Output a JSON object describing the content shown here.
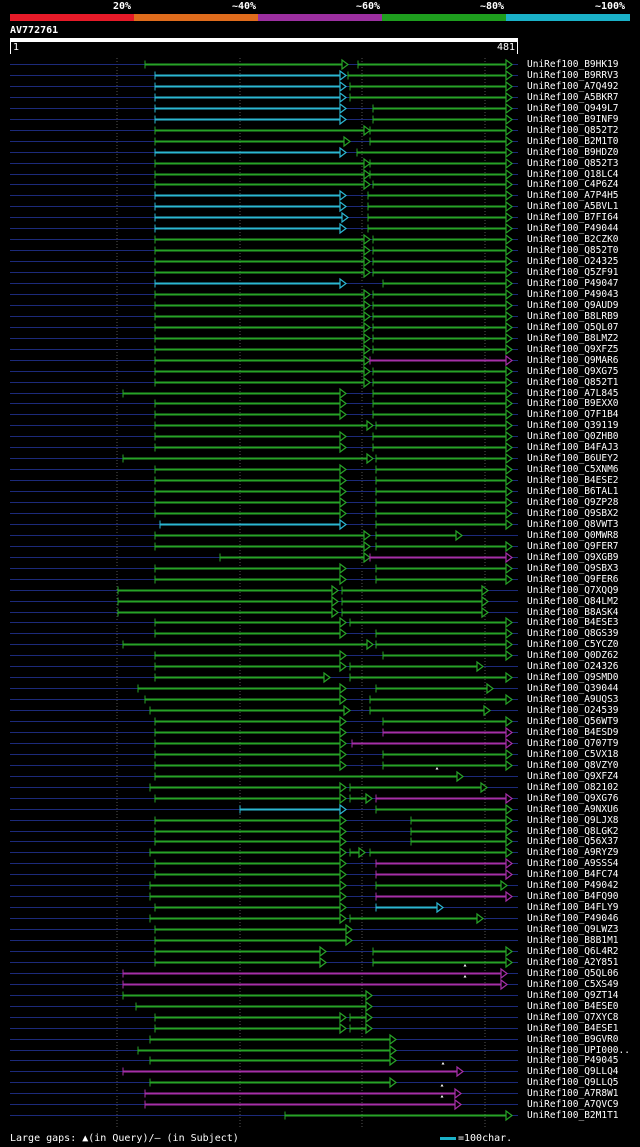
{
  "legend": {
    "ticks": [
      "20%",
      "~40%",
      "~60%",
      "~80%",
      "~100%"
    ],
    "colors": [
      "#e61a28",
      "#e06c1c",
      "#9c2fa0",
      "#1e9e1e",
      "#1ab1c8"
    ]
  },
  "query": {
    "name": "AV772761",
    "start": "1",
    "end": "481"
  },
  "footer": {
    "gaps_text": "Large gaps: ▲(in Query)/– (in Subject)",
    "scale_text": "=100char."
  },
  "hits": [
    {
      "name": "UniRef100_B9HK19",
      "segs": [
        [
          145,
          348,
          "g"
        ],
        [
          358,
          512,
          "g"
        ]
      ]
    },
    {
      "name": "UniRef100_B9RRV3",
      "segs": [
        [
          155,
          346,
          "c"
        ],
        [
          348,
          512,
          "g"
        ]
      ]
    },
    {
      "name": "UniRef100_A7Q492",
      "segs": [
        [
          155,
          346,
          "c"
        ],
        [
          350,
          512,
          "g"
        ]
      ]
    },
    {
      "name": "UniRef100_A5BKR7",
      "segs": [
        [
          155,
          346,
          "c"
        ],
        [
          350,
          512,
          "g"
        ]
      ]
    },
    {
      "name": "UniRef100_Q949L7",
      "segs": [
        [
          155,
          346,
          "c"
        ],
        [
          373,
          512,
          "g"
        ]
      ]
    },
    {
      "name": "UniRef100_B9INF9",
      "segs": [
        [
          155,
          346,
          "c"
        ],
        [
          373,
          512,
          "g"
        ]
      ]
    },
    {
      "name": "UniRef100_Q852T2",
      "segs": [
        [
          155,
          370,
          "g"
        ],
        [
          370,
          512,
          "g"
        ]
      ]
    },
    {
      "name": "UniRef100_B2M1T0",
      "segs": [
        [
          155,
          350,
          "g"
        ],
        [
          370,
          512,
          "g"
        ]
      ]
    },
    {
      "name": "UniRef100_B9HDZ0",
      "segs": [
        [
          155,
          346,
          "c"
        ],
        [
          357,
          512,
          "g"
        ]
      ]
    },
    {
      "name": "UniRef100_Q852T3",
      "segs": [
        [
          155,
          370,
          "g"
        ],
        [
          370,
          512,
          "g"
        ]
      ]
    },
    {
      "name": "UniRef100_Q18LC4",
      "segs": [
        [
          155,
          370,
          "g"
        ],
        [
          370,
          512,
          "g"
        ]
      ]
    },
    {
      "name": "UniRef100_C4P6Z4",
      "segs": [
        [
          155,
          370,
          "g"
        ],
        [
          373,
          512,
          "g"
        ]
      ]
    },
    {
      "name": "UniRef100_A7P4H5",
      "segs": [
        [
          155,
          346,
          "c"
        ],
        [
          368,
          512,
          "g"
        ]
      ]
    },
    {
      "name": "UniRef100_A5BVL1",
      "segs": [
        [
          155,
          346,
          "c"
        ],
        [
          368,
          512,
          "g"
        ]
      ]
    },
    {
      "name": "UniRef100_B7FI64",
      "segs": [
        [
          155,
          348,
          "c"
        ],
        [
          368,
          512,
          "g"
        ]
      ]
    },
    {
      "name": "UniRef100_P49044",
      "segs": [
        [
          155,
          346,
          "c"
        ],
        [
          368,
          512,
          "g"
        ]
      ]
    },
    {
      "name": "UniRef100_B2CZK0",
      "segs": [
        [
          155,
          370,
          "g"
        ],
        [
          373,
          512,
          "g"
        ]
      ]
    },
    {
      "name": "UniRef100_Q852T0",
      "segs": [
        [
          155,
          370,
          "g"
        ],
        [
          373,
          512,
          "g"
        ]
      ]
    },
    {
      "name": "UniRef100_O24325",
      "segs": [
        [
          155,
          370,
          "g"
        ],
        [
          373,
          512,
          "g"
        ]
      ]
    },
    {
      "name": "UniRef100_Q5ZF91",
      "segs": [
        [
          155,
          370,
          "g"
        ],
        [
          373,
          512,
          "g"
        ]
      ]
    },
    {
      "name": "UniRef100_P49047",
      "segs": [
        [
          155,
          346,
          "c"
        ],
        [
          383,
          512,
          "g"
        ]
      ]
    },
    {
      "name": "UniRef100_P49043",
      "segs": [
        [
          155,
          370,
          "g"
        ],
        [
          373,
          512,
          "g"
        ]
      ]
    },
    {
      "name": "UniRef100_Q9AUD9",
      "segs": [
        [
          155,
          370,
          "g"
        ],
        [
          373,
          512,
          "g"
        ]
      ]
    },
    {
      "name": "UniRef100_B8LRB9",
      "segs": [
        [
          155,
          370,
          "g"
        ],
        [
          373,
          512,
          "g"
        ]
      ]
    },
    {
      "name": "UniRef100_Q5QL07",
      "segs": [
        [
          155,
          370,
          "g"
        ],
        [
          373,
          512,
          "g"
        ]
      ]
    },
    {
      "name": "UniRef100_B8LMZ2",
      "segs": [
        [
          155,
          370,
          "g"
        ],
        [
          373,
          512,
          "g"
        ]
      ]
    },
    {
      "name": "UniRef100_Q9XFZ5",
      "segs": [
        [
          155,
          370,
          "g"
        ],
        [
          373,
          512,
          "g"
        ]
      ]
    },
    {
      "name": "UniRef100_Q9MAR6",
      "segs": [
        [
          155,
          370,
          "g"
        ],
        [
          370,
          512,
          "m"
        ]
      ]
    },
    {
      "name": "UniRef100_Q9XG75",
      "segs": [
        [
          155,
          370,
          "g"
        ],
        [
          373,
          512,
          "g"
        ]
      ]
    },
    {
      "name": "UniRef100_Q852T1",
      "segs": [
        [
          155,
          370,
          "g"
        ],
        [
          373,
          512,
          "g"
        ]
      ]
    },
    {
      "name": "UniRef100_A7L845",
      "segs": [
        [
          123,
          346,
          "g"
        ],
        [
          373,
          512,
          "g"
        ]
      ]
    },
    {
      "name": "UniRef100_B9EXX0",
      "segs": [
        [
          155,
          346,
          "g"
        ],
        [
          373,
          512,
          "g"
        ]
      ]
    },
    {
      "name": "UniRef100_Q7F1B4",
      "segs": [
        [
          155,
          346,
          "g"
        ],
        [
          373,
          512,
          "g"
        ]
      ]
    },
    {
      "name": "UniRef100_Q39119",
      "segs": [
        [
          155,
          373,
          "g"
        ],
        [
          376,
          512,
          "g"
        ]
      ]
    },
    {
      "name": "UniRef100_Q0ZHB0",
      "segs": [
        [
          155,
          346,
          "g"
        ],
        [
          373,
          512,
          "g"
        ]
      ]
    },
    {
      "name": "UniRef100_B4FAJ3",
      "segs": [
        [
          155,
          346,
          "g"
        ],
        [
          373,
          512,
          "g"
        ]
      ]
    },
    {
      "name": "UniRef100_B6UEY2",
      "segs": [
        [
          123,
          373,
          "g"
        ],
        [
          376,
          512,
          "g"
        ]
      ]
    },
    {
      "name": "UniRef100_C5XNM6",
      "segs": [
        [
          155,
          346,
          "g"
        ],
        [
          376,
          512,
          "g"
        ]
      ]
    },
    {
      "name": "UniRef100_B4ESE2",
      "segs": [
        [
          155,
          346,
          "g"
        ],
        [
          376,
          512,
          "g"
        ]
      ]
    },
    {
      "name": "UniRef100_B6TAL1",
      "segs": [
        [
          155,
          346,
          "g"
        ],
        [
          376,
          512,
          "g"
        ]
      ]
    },
    {
      "name": "UniRef100_Q9ZP28",
      "segs": [
        [
          155,
          346,
          "g"
        ],
        [
          376,
          512,
          "g"
        ]
      ]
    },
    {
      "name": "UniRef100_Q9SBX2",
      "segs": [
        [
          155,
          346,
          "g"
        ],
        [
          376,
          512,
          "g"
        ]
      ]
    },
    {
      "name": "UniRef100_Q8VWT3",
      "segs": [
        [
          160,
          346,
          "c"
        ],
        [
          376,
          512,
          "g"
        ]
      ]
    },
    {
      "name": "UniRef100_Q0MWR8",
      "segs": [
        [
          155,
          370,
          "g"
        ],
        [
          376,
          462,
          "g"
        ]
      ]
    },
    {
      "name": "UniRef100_Q9FER7",
      "segs": [
        [
          155,
          370,
          "g"
        ],
        [
          376,
          512,
          "g"
        ]
      ]
    },
    {
      "name": "UniRef100_Q9XGB9",
      "segs": [
        [
          220,
          370,
          "g"
        ],
        [
          370,
          512,
          "m"
        ]
      ]
    },
    {
      "name": "UniRef100_Q9SBX3",
      "segs": [
        [
          155,
          346,
          "g"
        ],
        [
          376,
          512,
          "g"
        ]
      ]
    },
    {
      "name": "UniRef100_Q9FER6",
      "segs": [
        [
          155,
          346,
          "g"
        ],
        [
          376,
          512,
          "g"
        ]
      ]
    },
    {
      "name": "UniRef100_Q7XQQ9",
      "segs": [
        [
          118,
          338,
          "g"
        ],
        [
          342,
          488,
          "g"
        ]
      ]
    },
    {
      "name": "UniRef100_Q84LM2",
      "segs": [
        [
          118,
          338,
          "g"
        ],
        [
          342,
          488,
          "g"
        ]
      ]
    },
    {
      "name": "UniRef100_B8ASK4",
      "segs": [
        [
          118,
          338,
          "g"
        ],
        [
          342,
          488,
          "g"
        ]
      ]
    },
    {
      "name": "UniRef100_B4ESE3",
      "segs": [
        [
          155,
          346,
          "g"
        ],
        [
          350,
          512,
          "g"
        ]
      ]
    },
    {
      "name": "UniRef100_Q8GS39",
      "segs": [
        [
          155,
          346,
          "g"
        ],
        [
          376,
          512,
          "g"
        ]
      ]
    },
    {
      "name": "UniRef100_C5YCZ0",
      "segs": [
        [
          123,
          373,
          "g"
        ],
        [
          376,
          512,
          "g"
        ]
      ]
    },
    {
      "name": "UniRef100_Q0DZ62",
      "segs": [
        [
          155,
          346,
          "g"
        ],
        [
          383,
          512,
          "g"
        ]
      ]
    },
    {
      "name": "UniRef100_O24326",
      "segs": [
        [
          155,
          346,
          "g"
        ],
        [
          350,
          483,
          "g"
        ]
      ]
    },
    {
      "name": "UniRef100_Q9SMD0",
      "segs": [
        [
          155,
          330,
          "g"
        ],
        [
          350,
          512,
          "g"
        ]
      ]
    },
    {
      "name": "UniRef100_Q39044",
      "segs": [
        [
          138,
          346,
          "g"
        ],
        [
          376,
          493,
          "g"
        ]
      ]
    },
    {
      "name": "UniRef100_A9UQS3",
      "segs": [
        [
          145,
          346,
          "g"
        ],
        [
          370,
          512,
          "g"
        ]
      ]
    },
    {
      "name": "UniRef100_O24539",
      "segs": [
        [
          150,
          350,
          "g"
        ],
        [
          370,
          490,
          "g"
        ]
      ]
    },
    {
      "name": "UniRef100_Q56WT9",
      "segs": [
        [
          155,
          346,
          "g"
        ],
        [
          383,
          512,
          "g"
        ]
      ]
    },
    {
      "name": "UniRef100_B4ESD9",
      "segs": [
        [
          155,
          346,
          "g"
        ],
        [
          383,
          512,
          "m"
        ]
      ]
    },
    {
      "name": "UniRef100_Q707T9",
      "segs": [
        [
          155,
          346,
          "g"
        ],
        [
          352,
          512,
          "m"
        ]
      ]
    },
    {
      "name": "UniRef100_C5VX18",
      "segs": [
        [
          155,
          346,
          "g"
        ],
        [
          383,
          512,
          "g"
        ]
      ]
    },
    {
      "name": "UniRef100_Q8VZY0",
      "segs": [
        [
          155,
          346,
          "g"
        ],
        [
          383,
          512,
          "g"
        ]
      ]
    },
    {
      "name": "UniRef100_Q9XFZ4",
      "segs": [
        [
          155,
          463,
          "g"
        ]
      ],
      "marks": [
        [
          "a",
          437
        ]
      ]
    },
    {
      "name": "UniRef100_O82102",
      "segs": [
        [
          150,
          346,
          "g"
        ],
        [
          350,
          487,
          "g"
        ]
      ]
    },
    {
      "name": "UniRef100_Q9XG76",
      "segs": [
        [
          155,
          346,
          "g"
        ],
        [
          350,
          372,
          "g"
        ],
        [
          376,
          512,
          "m"
        ]
      ]
    },
    {
      "name": "UniRef100_A9NXU6",
      "segs": [
        [
          240,
          346,
          "c"
        ],
        [
          376,
          512,
          "g"
        ]
      ]
    },
    {
      "name": "UniRef100_Q9LJX8",
      "segs": [
        [
          155,
          346,
          "g"
        ],
        [
          411,
          512,
          "g"
        ]
      ]
    },
    {
      "name": "UniRef100_Q8LGK2",
      "segs": [
        [
          155,
          346,
          "g"
        ],
        [
          411,
          512,
          "g"
        ]
      ]
    },
    {
      "name": "UniRef100_Q56X37",
      "segs": [
        [
          155,
          346,
          "g"
        ],
        [
          411,
          512,
          "g"
        ]
      ]
    },
    {
      "name": "UniRef100_A9RYZ9",
      "segs": [
        [
          150,
          346,
          "g"
        ],
        [
          350,
          365,
          "g"
        ],
        [
          370,
          512,
          "g"
        ]
      ]
    },
    {
      "name": "UniRef100_A9SSS4",
      "segs": [
        [
          155,
          346,
          "g"
        ],
        [
          376,
          512,
          "m"
        ]
      ]
    },
    {
      "name": "UniRef100_B4FC74",
      "segs": [
        [
          155,
          346,
          "g"
        ],
        [
          376,
          512,
          "m"
        ]
      ]
    },
    {
      "name": "UniRef100_P49042",
      "segs": [
        [
          150,
          346,
          "g"
        ],
        [
          376,
          507,
          "g"
        ]
      ]
    },
    {
      "name": "UniRef100_B4FQ90",
      "segs": [
        [
          150,
          346,
          "g"
        ],
        [
          376,
          512,
          "m"
        ]
      ]
    },
    {
      "name": "UniRef100_B4FLY9",
      "segs": [
        [
          155,
          346,
          "g"
        ],
        [
          376,
          443,
          "c"
        ]
      ]
    },
    {
      "name": "UniRef100_P49046",
      "segs": [
        [
          150,
          346,
          "g"
        ],
        [
          350,
          483,
          "g"
        ]
      ]
    },
    {
      "name": "UniRef100_Q9LWZ3",
      "segs": [
        [
          155,
          352,
          "g"
        ]
      ]
    },
    {
      "name": "UniRef100_B8B1M1",
      "segs": [
        [
          155,
          352,
          "g"
        ]
      ]
    },
    {
      "name": "UniRef100_Q6L4R2",
      "segs": [
        [
          155,
          326,
          "g"
        ],
        [
          373,
          512,
          "g"
        ]
      ]
    },
    {
      "name": "UniRef100_A2Y851",
      "segs": [
        [
          155,
          326,
          "g"
        ],
        [
          373,
          512,
          "g"
        ]
      ]
    },
    {
      "name": "UniRef100_Q5QL06",
      "segs": [
        [
          123,
          507,
          "m"
        ]
      ],
      "marks": [
        [
          "a",
          465
        ]
      ]
    },
    {
      "name": "UniRef100_C5XS49",
      "segs": [
        [
          123,
          507,
          "m"
        ]
      ],
      "marks": [
        [
          "a",
          465
        ]
      ]
    },
    {
      "name": "UniRef100_Q9ZT14",
      "segs": [
        [
          123,
          372,
          "g"
        ]
      ]
    },
    {
      "name": "UniRef100_B4ESE0",
      "segs": [
        [
          136,
          372,
          "g"
        ]
      ]
    },
    {
      "name": "UniRef100_Q7XYC8",
      "segs": [
        [
          155,
          346,
          "g"
        ],
        [
          350,
          372,
          "g"
        ]
      ]
    },
    {
      "name": "UniRef100_B4ESE1",
      "segs": [
        [
          155,
          346,
          "g"
        ],
        [
          350,
          372,
          "g"
        ]
      ]
    },
    {
      "name": "UniRef100_B9GVR0",
      "segs": [
        [
          150,
          396,
          "g"
        ]
      ]
    },
    {
      "name": "UniRef100_UPI000..",
      "segs": [
        [
          138,
          396,
          "g"
        ]
      ]
    },
    {
      "name": "UniRef100_P49045",
      "segs": [
        [
          150,
          396,
          "g"
        ]
      ]
    },
    {
      "name": "UniRef100_Q9LLQ4",
      "segs": [
        [
          123,
          463,
          "m"
        ]
      ],
      "marks": [
        [
          "a",
          443
        ]
      ]
    },
    {
      "name": "UniRef100_Q9LLQ5",
      "segs": [
        [
          150,
          396,
          "g"
        ]
      ]
    },
    {
      "name": "UniRef100_A7R8W1",
      "segs": [
        [
          145,
          461,
          "m"
        ]
      ],
      "marks": [
        [
          "a",
          442
        ]
      ]
    },
    {
      "name": "UniRef100_A7QVC9",
      "segs": [
        [
          145,
          461,
          "m"
        ]
      ],
      "marks": [
        [
          "a",
          442
        ]
      ]
    },
    {
      "name": "UniRef100_B2M1T1",
      "segs": [
        [
          285,
          512,
          "g"
        ]
      ]
    }
  ]
}
